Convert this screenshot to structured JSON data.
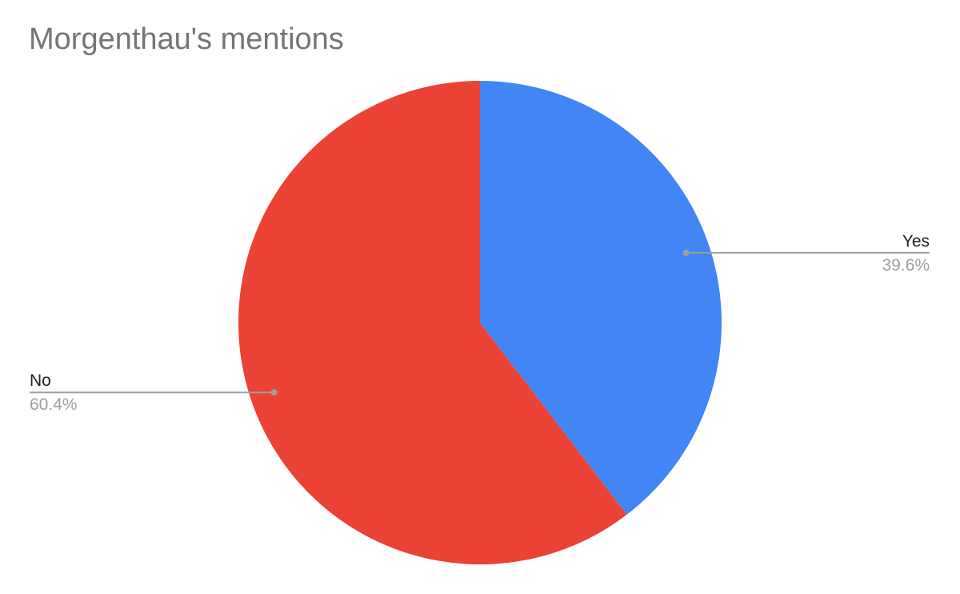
{
  "chart_data": {
    "type": "pie",
    "title": "Morgenthau's mentions",
    "slices": [
      {
        "label": "Yes",
        "value": 39.6,
        "percent_label": "39.6%",
        "color": "#4285F4"
      },
      {
        "label": "No",
        "value": 60.4,
        "percent_label": "60.4%",
        "color": "#EA4335"
      }
    ],
    "start_angle": "12 o'clock",
    "direction": "clockwise",
    "labels": "outside with leader lines"
  }
}
